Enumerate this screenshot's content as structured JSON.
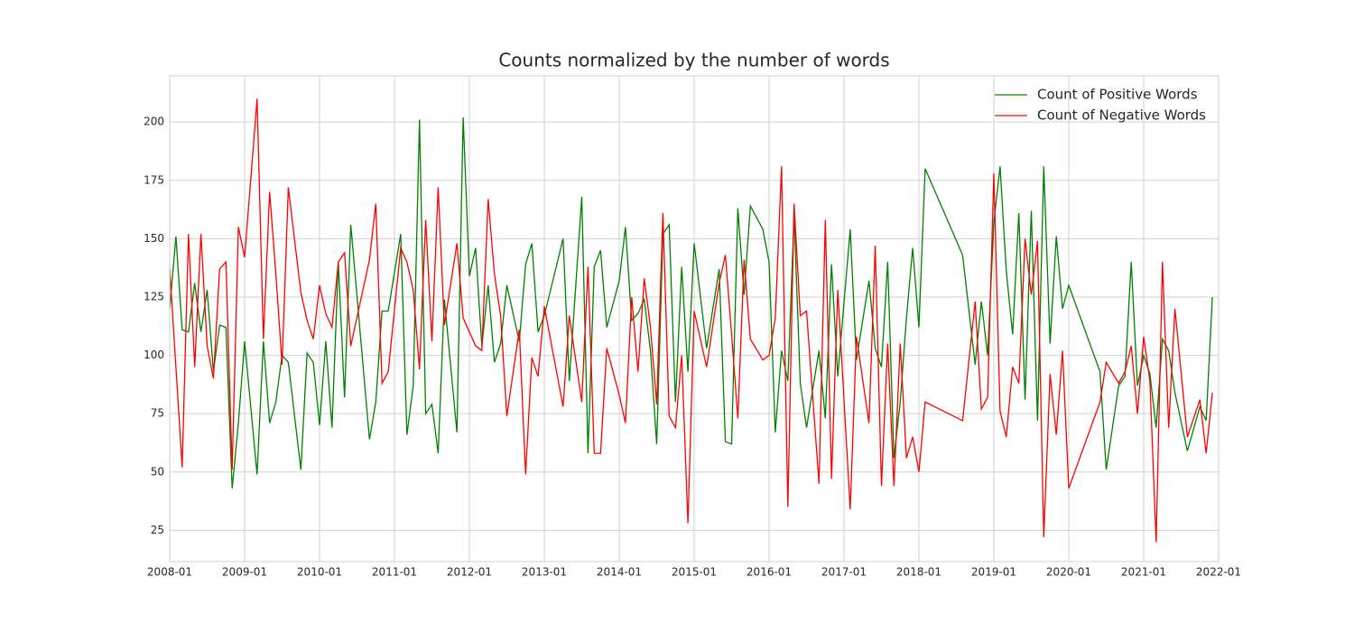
{
  "chart_data": {
    "type": "line",
    "title": "Counts normalized by the number of words",
    "x": [
      "2008-01",
      "2008-02",
      "2008-03",
      "2008-04",
      "2008-05",
      "2008-06",
      "2008-07",
      "2008-08",
      "2008-09",
      "2008-10",
      "2008-11",
      "2008-12",
      "2009-01",
      "2009-03",
      "2009-04",
      "2009-05",
      "2009-06",
      "2009-07",
      "2009-08",
      "2009-10",
      "2009-11",
      "2009-12",
      "2010-01",
      "2010-02",
      "2010-03",
      "2010-04",
      "2010-05",
      "2010-06",
      "2010-09",
      "2010-10",
      "2010-11",
      "2010-12",
      "2011-02",
      "2011-03",
      "2011-04",
      "2011-05",
      "2011-06",
      "2011-07",
      "2011-08",
      "2011-09",
      "2011-11",
      "2011-12",
      "2012-01",
      "2012-02",
      "2012-03",
      "2012-04",
      "2012-05",
      "2012-06",
      "2012-07",
      "2012-09",
      "2012-10",
      "2012-11",
      "2012-12",
      "2013-01",
      "2013-04",
      "2013-05",
      "2013-07",
      "2013-08",
      "2013-09",
      "2013-10",
      "2013-11",
      "2014-01",
      "2014-02",
      "2014-03",
      "2014-04",
      "2014-05",
      "2014-06",
      "2014-07",
      "2014-08",
      "2014-09",
      "2014-10",
      "2014-11",
      "2014-12",
      "2015-01",
      "2015-03",
      "2015-05",
      "2015-06",
      "2015-07",
      "2015-08",
      "2015-09",
      "2015-10",
      "2015-12",
      "2016-01",
      "2016-02",
      "2016-03",
      "2016-04",
      "2016-05",
      "2016-06",
      "2016-07",
      "2016-09",
      "2016-10",
      "2016-11",
      "2016-12",
      "2017-02",
      "2017-03",
      "2017-05",
      "2017-06",
      "2017-07",
      "2017-08",
      "2017-09",
      "2017-10",
      "2017-11",
      "2017-12",
      "2018-01",
      "2018-02",
      "2018-08",
      "2018-10",
      "2018-11",
      "2018-12",
      "2019-01",
      "2019-02",
      "2019-03",
      "2019-04",
      "2019-05",
      "2019-06",
      "2019-07",
      "2019-08",
      "2019-09",
      "2019-10",
      "2019-11",
      "2019-12",
      "2020-01",
      "2020-06",
      "2020-07",
      "2020-09",
      "2020-10",
      "2020-11",
      "2020-12",
      "2021-01",
      "2021-02",
      "2021-03",
      "2021-04",
      "2021-05",
      "2021-06",
      "2021-08",
      "2021-10",
      "2021-11",
      "2021-12"
    ],
    "series": [
      {
        "name": "Count of Positive Words",
        "color": "green",
        "values": [
          120,
          151,
          111,
          110,
          131,
          110,
          128,
          93,
          113,
          112,
          43,
          71,
          106,
          49,
          106,
          71,
          80,
          100,
          97,
          51,
          101,
          97,
          70,
          106,
          69,
          140,
          82,
          156,
          64,
          80,
          119,
          119,
          152,
          66,
          87,
          201,
          75,
          79,
          58,
          124,
          67,
          202,
          134,
          146,
          104,
          130,
          97,
          105,
          130,
          106,
          139,
          148,
          110,
          117,
          150,
          89,
          168,
          58,
          138,
          145,
          112,
          132,
          155,
          115,
          118,
          124,
          102,
          62,
          152,
          156,
          80,
          138,
          93,
          148,
          103,
          137,
          63,
          62,
          163,
          126,
          164,
          154,
          140,
          67,
          102,
          89,
          160,
          88,
          69,
          102,
          73,
          139,
          91,
          154,
          98,
          132,
          103,
          95,
          140,
          56,
          80,
          116,
          146,
          112,
          180,
          143,
          96,
          123,
          100,
          157,
          181,
          136,
          109,
          161,
          81,
          162,
          72,
          181,
          105,
          151,
          120,
          130,
          93,
          51,
          87,
          91,
          140,
          87,
          100,
          92,
          69,
          107,
          102,
          84,
          59,
          78,
          72,
          125
        ]
      },
      {
        "name": "Count of Negative Words",
        "color": "red",
        "values": [
          137,
          95,
          52,
          152,
          95,
          152,
          104,
          90,
          137,
          140,
          51,
          155,
          142,
          210,
          107,
          170,
          135,
          96,
          172,
          127,
          115,
          107,
          130,
          118,
          112,
          140,
          144,
          104,
          141,
          165,
          88,
          93,
          146,
          140,
          128,
          94,
          158,
          106,
          172,
          113,
          148,
          116,
          110,
          104,
          102,
          167,
          135,
          117,
          74,
          111,
          49,
          99,
          91,
          121,
          78,
          117,
          80,
          138,
          58,
          58,
          103,
          83,
          71,
          125,
          93,
          133,
          112,
          79,
          161,
          74,
          69,
          100,
          28,
          119,
          95,
          131,
          143,
          109,
          73,
          141,
          107,
          98,
          100,
          116,
          181,
          35,
          165,
          117,
          119,
          45,
          158,
          47,
          128,
          34,
          108,
          71,
          147,
          44,
          105,
          44,
          105,
          56,
          65,
          50,
          80,
          72,
          123,
          77,
          82,
          178,
          76,
          65,
          95,
          88,
          150,
          126,
          149,
          22,
          92,
          66,
          102,
          43,
          80,
          97,
          88,
          93,
          104,
          75,
          108,
          89,
          20,
          140,
          69,
          120,
          65,
          81,
          58,
          84
        ]
      }
    ],
    "xlim": [
      "2008-01",
      "2022-01"
    ],
    "xticks": [
      "2008-01",
      "2009-01",
      "2010-01",
      "2011-01",
      "2012-01",
      "2013-01",
      "2014-01",
      "2015-01",
      "2016-01",
      "2017-01",
      "2018-01",
      "2019-01",
      "2020-01",
      "2021-01",
      "2022-01"
    ],
    "ylim": [
      11.6,
      219.8
    ],
    "yticks": [
      25,
      50,
      75,
      100,
      125,
      150,
      175,
      200
    ],
    "grid": true,
    "legend": "upper right"
  }
}
